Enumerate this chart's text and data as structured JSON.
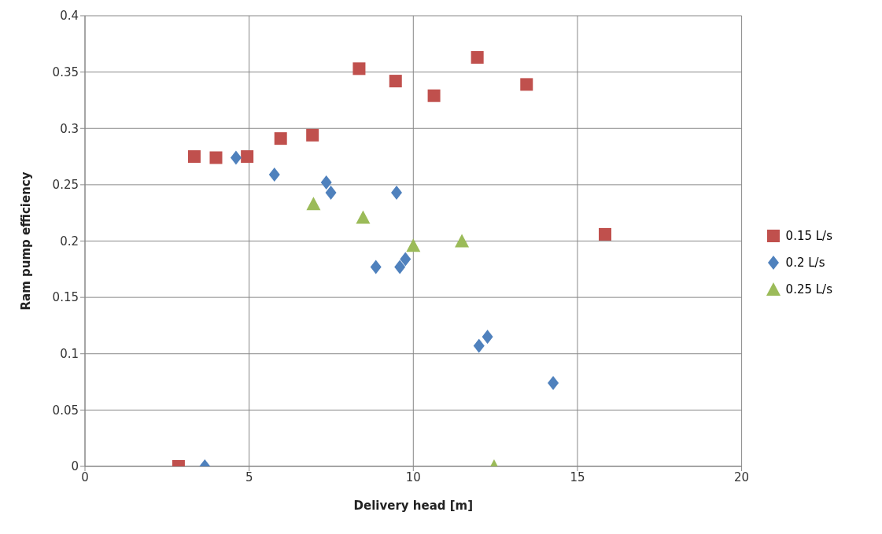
{
  "chart_data": {
    "type": "scatter",
    "xlabel": "Delivery head [m]",
    "ylabel": "Ram pump efficiency",
    "xlim": [
      0,
      20
    ],
    "xticks": [
      0,
      5,
      10,
      15,
      20
    ],
    "ylim": [
      0,
      0.4
    ],
    "yticks": [
      0,
      0.05,
      0.1,
      0.15,
      0.2,
      0.25,
      0.3,
      0.35,
      0.4
    ],
    "grid": true,
    "legend": "right",
    "series": [
      {
        "name": "0.15 L/s",
        "color": "#c0504d",
        "marker": "square",
        "x": [
          2.85,
          3.33,
          3.99,
          4.94,
          5.96,
          6.93,
          8.35,
          9.46,
          10.63,
          11.95,
          13.45,
          15.84
        ],
        "values": [
          0,
          0.275,
          0.274,
          0.275,
          0.291,
          0.294,
          0.353,
          0.342,
          0.329,
          0.363,
          0.339,
          0.206
        ]
      },
      {
        "name": "0.2 L/s",
        "color": "#4f81bd",
        "marker": "diamond",
        "x": [
          3.65,
          4.6,
          5.77,
          7.35,
          7.49,
          9.49,
          8.86,
          9.59,
          9.76,
          12.0,
          12.26,
          14.26
        ],
        "values": [
          0,
          0.274,
          0.259,
          0.252,
          0.243,
          0.243,
          0.177,
          0.177,
          0.184,
          0.107,
          0.115,
          0.074
        ]
      },
      {
        "name": "0.25 L/s",
        "color": "#9bbb59",
        "marker": "triangle",
        "x": [
          6.96,
          8.47,
          10.0,
          11.48,
          12.46
        ],
        "values": [
          0.233,
          0.221,
          0.196,
          0.2,
          0
        ]
      }
    ]
  }
}
